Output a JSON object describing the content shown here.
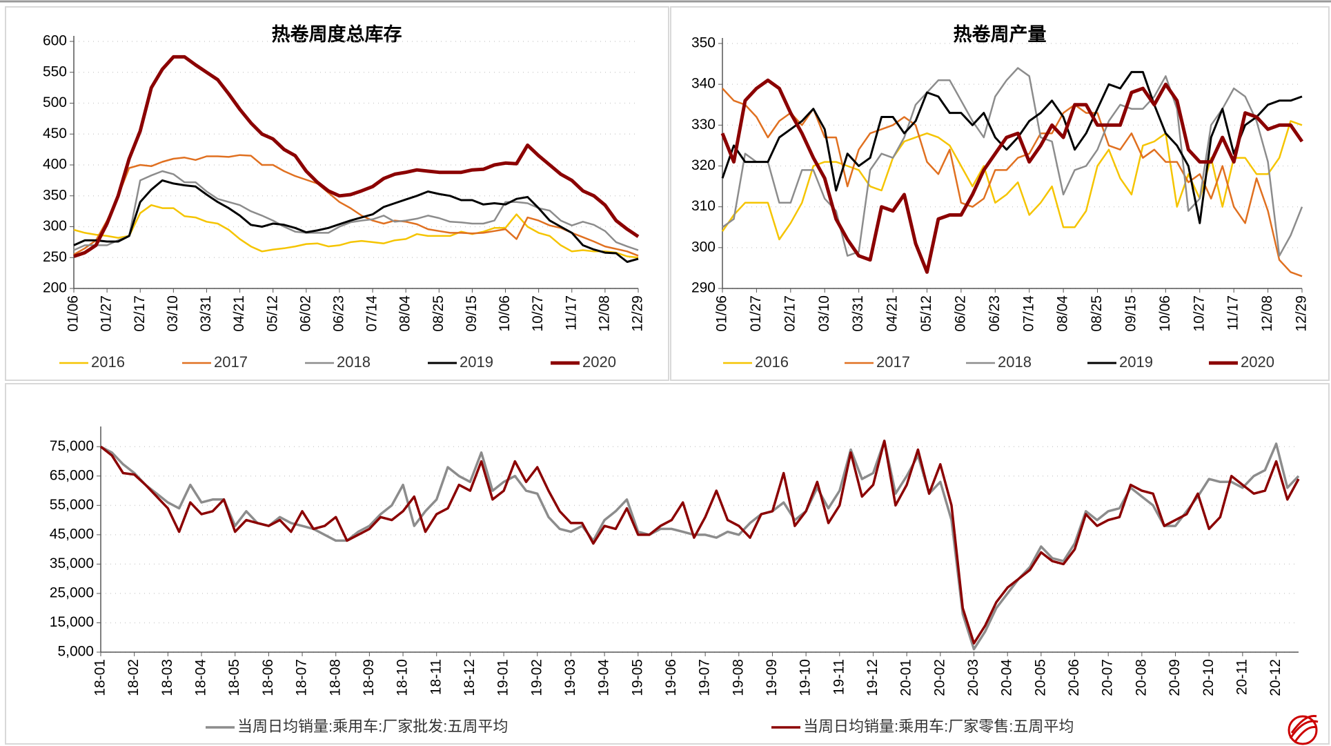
{
  "chart_data": [
    {
      "type": "line",
      "title": "热卷周度总库存",
      "categories": [
        "01/06",
        null,
        null,
        "01/27",
        null,
        null,
        "02/17",
        null,
        null,
        "03/10",
        null,
        null,
        "03/31",
        null,
        null,
        "04/21",
        null,
        null,
        "05/12",
        null,
        null,
        "06/02",
        null,
        null,
        "06/23",
        null,
        null,
        "07/14",
        null,
        null,
        "08/04",
        null,
        null,
        "08/25",
        null,
        null,
        "09/15",
        null,
        null,
        "10/06",
        null,
        null,
        "10/27",
        null,
        null,
        "11/17",
        null,
        null,
        "12/08",
        null,
        null,
        "12/29"
      ],
      "ylim": [
        200,
        600
      ],
      "yticks": [
        200,
        250,
        300,
        350,
        400,
        450,
        500,
        550,
        600
      ],
      "grid": true,
      "legend": "bottom",
      "series": [
        {
          "name": "2016",
          "color": "#f5c400",
          "values": [
            295,
            290,
            287,
            285,
            282,
            285,
            322,
            335,
            330,
            330,
            317,
            315,
            308,
            305,
            295,
            280,
            268,
            260,
            263,
            265,
            268,
            272,
            273,
            268,
            270,
            275,
            277,
            275,
            273,
            278,
            280,
            288,
            285,
            285,
            285,
            292,
            288,
            292,
            298,
            298,
            320,
            300,
            290,
            285,
            270,
            260,
            262,
            260,
            260,
            258,
            252,
            250
          ]
        },
        {
          "name": "2017",
          "color": "#e07020",
          "values": [
            255,
            265,
            278,
            310,
            350,
            395,
            400,
            398,
            405,
            410,
            412,
            408,
            414,
            414,
            413,
            416,
            415,
            400,
            400,
            390,
            382,
            376,
            370,
            355,
            340,
            330,
            318,
            310,
            305,
            310,
            308,
            304,
            296,
            293,
            290,
            290,
            289,
            290,
            293,
            296,
            280,
            315,
            310,
            302,
            298,
            290,
            283,
            276,
            268,
            264,
            260,
            253
          ]
        },
        {
          "name": "2018",
          "color": "#8c8c8c",
          "values": [
            262,
            270,
            270,
            270,
            278,
            285,
            375,
            383,
            390,
            385,
            372,
            372,
            357,
            345,
            340,
            335,
            325,
            318,
            310,
            300,
            292,
            290,
            290,
            290,
            300,
            307,
            310,
            312,
            318,
            308,
            310,
            313,
            318,
            314,
            308,
            307,
            305,
            305,
            310,
            340,
            340,
            338,
            330,
            326,
            310,
            302,
            308,
            303,
            293,
            275,
            268,
            262
          ]
        },
        {
          "name": "2019",
          "color": "#000000",
          "values": [
            270,
            278,
            278,
            276,
            276,
            285,
            340,
            360,
            375,
            370,
            367,
            365,
            352,
            340,
            330,
            318,
            303,
            300,
            305,
            303,
            298,
            291,
            294,
            298,
            304,
            310,
            315,
            320,
            332,
            338,
            344,
            350,
            357,
            353,
            350,
            343,
            343,
            336,
            338,
            336,
            345,
            348,
            330,
            310,
            300,
            290,
            270,
            263,
            258,
            257,
            243,
            248
          ]
        },
        {
          "name": "2020",
          "color": "#8b0000",
          "values": [
            252,
            258,
            270,
            305,
            350,
            410,
            455,
            525,
            555,
            575,
            575,
            562,
            550,
            538,
            515,
            490,
            468,
            450,
            442,
            425,
            415,
            390,
            372,
            358,
            350,
            352,
            358,
            365,
            378,
            385,
            388,
            392,
            390,
            388,
            388,
            388,
            392,
            393,
            400,
            403,
            402,
            432,
            415,
            400,
            385,
            375,
            358,
            350,
            335,
            310,
            296,
            284
          ]
        }
      ]
    },
    {
      "type": "line",
      "title": "热卷周产量",
      "categories": [
        "01/06",
        null,
        null,
        "01/27",
        null,
        null,
        "02/17",
        null,
        null,
        "03/10",
        null,
        null,
        "03/31",
        null,
        null,
        "04/21",
        null,
        null,
        "05/12",
        null,
        null,
        "06/02",
        null,
        null,
        "06/23",
        null,
        null,
        "07/14",
        null,
        null,
        "08/04",
        null,
        null,
        "08/25",
        null,
        null,
        "09/15",
        null,
        null,
        "10/06",
        null,
        null,
        "10/27",
        null,
        null,
        "11/17",
        null,
        null,
        "12/08",
        null,
        null,
        "12/29"
      ],
      "ylim": [
        290,
        350
      ],
      "yticks": [
        290,
        300,
        310,
        320,
        330,
        340,
        350
      ],
      "grid": true,
      "legend": "bottom",
      "series": [
        {
          "name": "2016",
          "color": "#f5c400",
          "values": [
            304,
            308,
            311,
            311,
            311,
            302,
            306,
            311,
            320,
            321,
            321,
            320,
            319,
            315,
            314,
            322,
            326,
            327,
            328,
            327,
            325,
            320,
            315,
            320,
            311,
            313,
            316,
            308,
            311,
            315,
            305,
            305,
            309,
            320,
            324,
            317,
            313,
            325,
            326,
            328,
            310,
            318,
            312,
            322,
            310,
            322,
            322,
            318,
            318,
            322,
            331,
            330
          ]
        },
        {
          "name": "2017",
          "color": "#e07020",
          "values": [
            339,
            336,
            335,
            332,
            327,
            331,
            333,
            330,
            334,
            327,
            327,
            315,
            324,
            328,
            329,
            330,
            332,
            330,
            321,
            318,
            324,
            311,
            310,
            312,
            319,
            319,
            322,
            323,
            328,
            328,
            333,
            335,
            333,
            333,
            325,
            324,
            328,
            322,
            324,
            321,
            321,
            316,
            318,
            312,
            320,
            310,
            306,
            317,
            309,
            297,
            294,
            293
          ]
        },
        {
          "name": "2018",
          "color": "#8c8c8c",
          "values": [
            305,
            307,
            323,
            321,
            321,
            311,
            311,
            319,
            319,
            312,
            309,
            298,
            299,
            319,
            323,
            322,
            327,
            335,
            338,
            341,
            341,
            336,
            331,
            327,
            337,
            341,
            344,
            342,
            327,
            326,
            313,
            319,
            320,
            324,
            331,
            335,
            334,
            334,
            337,
            342,
            334,
            309,
            312,
            330,
            334,
            339,
            337,
            331,
            321,
            298,
            303,
            310
          ]
        },
        {
          "name": "2019",
          "color": "#000000",
          "values": [
            317,
            325,
            321,
            321,
            321,
            327,
            329,
            331,
            334,
            329,
            314,
            323,
            320,
            322,
            332,
            332,
            328,
            331,
            338,
            337,
            333,
            333,
            330,
            333,
            327,
            324,
            327,
            331,
            333,
            336,
            332,
            324,
            328,
            334,
            340,
            339,
            343,
            343,
            335,
            328,
            325,
            320,
            306,
            327,
            334,
            323,
            330,
            332,
            335,
            336,
            336,
            337
          ]
        },
        {
          "name": "2020",
          "color": "#8b0000",
          "values": [
            328,
            321,
            336,
            339,
            341,
            339,
            333,
            328,
            322,
            317,
            307,
            302,
            298,
            297,
            310,
            309,
            313,
            301,
            294,
            307,
            308,
            308,
            313,
            319,
            323,
            327,
            328,
            321,
            325,
            330,
            327,
            335,
            335,
            330,
            330,
            330,
            338,
            339,
            335,
            340,
            336,
            324,
            321,
            321,
            327,
            321,
            333,
            332,
            329,
            330,
            330,
            326
          ]
        }
      ]
    },
    {
      "type": "line",
      "categories": [
        "18-01",
        null,
        null,
        "18-02",
        null,
        null,
        "18-03",
        null,
        null,
        "18-04",
        null,
        null,
        "18-05",
        null,
        null,
        "18-06",
        null,
        null,
        "18-07",
        null,
        null,
        "18-08",
        null,
        null,
        "18-09",
        null,
        null,
        "18-10",
        null,
        null,
        "18-11",
        null,
        null,
        "18-12",
        null,
        null,
        "19-01",
        null,
        null,
        "19-02",
        null,
        null,
        "19-03",
        null,
        null,
        "19-04",
        null,
        null,
        "19-05",
        null,
        null,
        "19-06",
        null,
        null,
        "19-07",
        null,
        null,
        "19-08",
        null,
        null,
        "19-09",
        null,
        null,
        "19-10",
        null,
        null,
        "19-11",
        null,
        null,
        "19-12",
        null,
        null,
        "20-01",
        null,
        null,
        "20-02",
        null,
        null,
        "20-03",
        null,
        null,
        "20-04",
        null,
        null,
        "20-05",
        null,
        null,
        "20-06",
        null,
        null,
        "20-07",
        null,
        null,
        "20-08",
        null,
        null,
        "20-09",
        null,
        null,
        "20-10",
        null,
        null,
        "20-11",
        null,
        null,
        "20-12",
        null,
        null
      ],
      "ylim": [
        5000,
        80000
      ],
      "yticks": [
        {
          "value": 5000,
          "label": "5,000"
        },
        {
          "value": 15000,
          "label": "15,000"
        },
        {
          "value": 25000,
          "label": "25,000"
        },
        {
          "value": 35000,
          "label": "35,000"
        },
        {
          "value": 45000,
          "label": "45,000"
        },
        {
          "value": 55000,
          "label": "55,000"
        },
        {
          "value": 65000,
          "label": "65,000"
        },
        {
          "value": 75000,
          "label": "75,000"
        }
      ],
      "grid": true,
      "legend": "bottom",
      "series": [
        {
          "name": "当周日均销量:乘用车:厂家批发:五周平均",
          "color": "#8c8c8c",
          "values": [
            75000,
            73000,
            69000,
            66000,
            62000,
            59000,
            56000,
            54000,
            62000,
            56000,
            57000,
            57000,
            48000,
            53000,
            49000,
            48000,
            51000,
            49000,
            48000,
            47000,
            45000,
            43000,
            43000,
            46000,
            48000,
            52000,
            55000,
            62000,
            48000,
            53000,
            57000,
            68000,
            65000,
            63000,
            73000,
            60000,
            63000,
            65000,
            60000,
            59000,
            51000,
            47000,
            46000,
            48000,
            43000,
            50000,
            53000,
            57000,
            46000,
            45000,
            47000,
            47000,
            46000,
            45000,
            45000,
            44000,
            46000,
            45000,
            49000,
            52000,
            53000,
            56000,
            50000,
            53000,
            61000,
            54000,
            60000,
            74000,
            64000,
            66000,
            77000,
            59000,
            65000,
            72000,
            59000,
            63000,
            50000,
            18000,
            6000,
            12000,
            20000,
            25000,
            30000,
            34000,
            41000,
            37000,
            36000,
            42000,
            53000,
            50000,
            53000,
            54000,
            61000,
            58000,
            55000,
            48000,
            48000,
            53000,
            58000,
            64000,
            63000,
            63000,
            61000,
            65000,
            67000,
            76000,
            61000,
            65000
          ]
        },
        {
          "name": "当周日均销量:乘用车:厂家零售:五周平均",
          "color": "#8b0000",
          "values": [
            75000,
            72000,
            66000,
            65500,
            62000,
            58000,
            54000,
            46000,
            56000,
            52000,
            53000,
            57000,
            46000,
            50000,
            49000,
            48000,
            50000,
            46000,
            53000,
            47000,
            48000,
            51000,
            43000,
            45000,
            47000,
            51000,
            50000,
            53000,
            58000,
            46000,
            52000,
            54000,
            62000,
            60000,
            70000,
            57000,
            60000,
            70000,
            63000,
            68000,
            60000,
            53000,
            49000,
            49000,
            42000,
            48000,
            47000,
            54000,
            45000,
            45000,
            48000,
            50000,
            56000,
            44000,
            51000,
            60000,
            50000,
            48000,
            44000,
            52000,
            53000,
            66000,
            48000,
            53000,
            63000,
            49000,
            55000,
            73000,
            58000,
            62000,
            77000,
            55000,
            62000,
            74000,
            59000,
            69000,
            55000,
            20000,
            8000,
            14000,
            22000,
            27000,
            30000,
            33000,
            39000,
            36000,
            35000,
            40000,
            52000,
            48000,
            50000,
            51000,
            62000,
            60000,
            59000,
            48000,
            50000,
            52000,
            59000,
            47000,
            51000,
            65000,
            62000,
            59000,
            60000,
            70000,
            57000,
            64000
          ]
        }
      ]
    }
  ]
}
